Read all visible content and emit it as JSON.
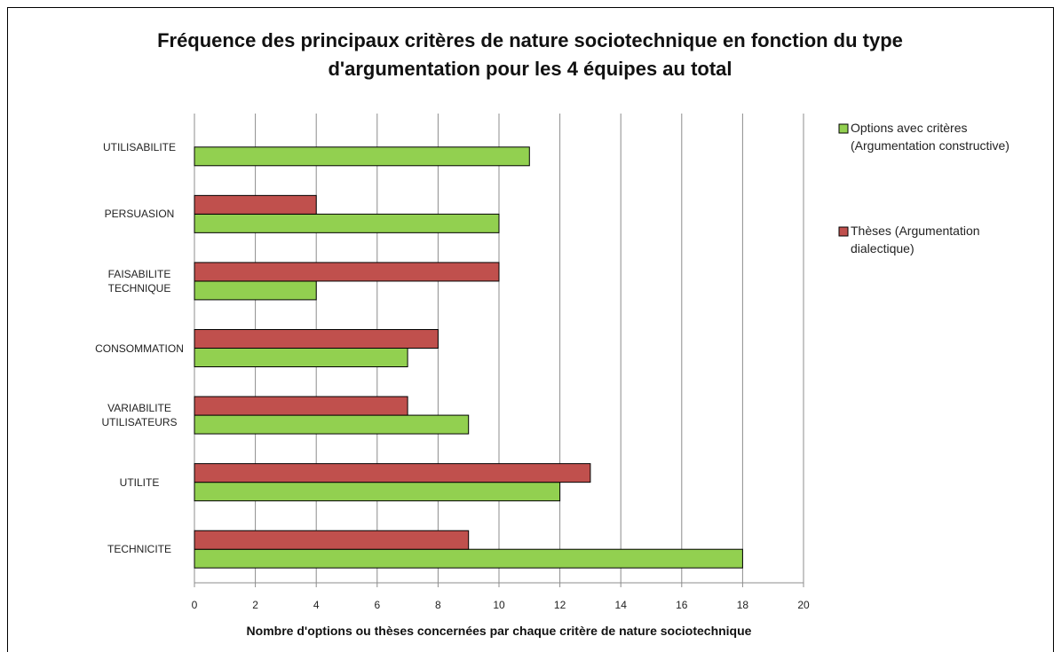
{
  "chart_data": {
    "type": "hbar",
    "title": "Fréquence des principaux critères de nature sociotechnique en fonction du type d'argumentation pour les 4 équipes au total",
    "xlabel": "Nombre d'options ou thèses concernées par chaque critère de nature sociotechnique",
    "categories": [
      "UTILISABILITE",
      "PERSUASION",
      "FAISABILITE TECHNIQUE",
      "CONSOMMATION",
      "VARIABILITE UTILISATEURS",
      "UTILITE",
      "TECHNICITE"
    ],
    "series": [
      {
        "name": "Options avec critères (Argumentation constructive)",
        "color": "#92d050",
        "values": [
          11,
          10,
          4,
          7,
          9,
          12,
          18
        ]
      },
      {
        "name": "Thèses (Argumentation dialectique)",
        "color": "#c0504d",
        "values": [
          null,
          4,
          10,
          8,
          7,
          13,
          9
        ]
      }
    ],
    "xlim": [
      0,
      20
    ],
    "xticks": [
      0,
      2,
      4,
      6,
      8,
      10,
      12,
      14,
      16,
      18,
      20
    ],
    "grid": true,
    "legend": "right"
  }
}
